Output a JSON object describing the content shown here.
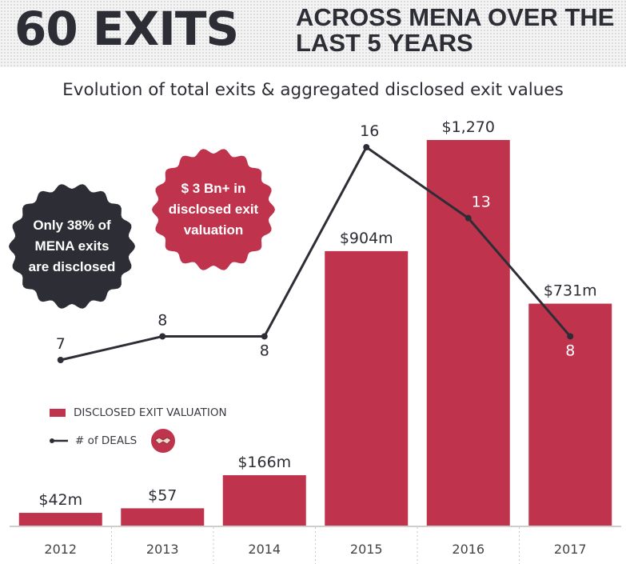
{
  "header": {
    "big_title": "60 EXITS",
    "sub_title_line1": "ACROSS MENA OVER THE",
    "sub_title_line2": "LAST 5 YEARS"
  },
  "chart_title": "Evolution of total exits & aggregated disclosed exit values",
  "badges": {
    "disclosed_share": {
      "line1": "Only 38% of",
      "line2": "MENA exits",
      "line3": "are disclosed"
    },
    "total_value": {
      "line1": "$ 3 Bn+ in",
      "line2": "disclosed exit",
      "line3": "valuation"
    }
  },
  "legend": {
    "bar_label": "DISCLOSED EXIT VALUATION",
    "line_label": "# of DEALS",
    "icon": "handshake-icon"
  },
  "colors": {
    "bar": "#c0334d",
    "line": "#2d2d35",
    "text": "#2d2d35"
  },
  "chart_data": {
    "type": "bar",
    "title": "Evolution of total exits & aggregated disclosed exit values",
    "categories": [
      "2012",
      "2013",
      "2014",
      "2015",
      "2016",
      "2017"
    ],
    "series": [
      {
        "name": "DISCLOSED EXIT VALUATION",
        "type": "bar",
        "values": [
          42,
          57,
          166,
          904,
          1270,
          731
        ],
        "labels": [
          "$42m",
          "$57",
          "$166m",
          "$904m",
          "$1,270",
          "$731m"
        ]
      },
      {
        "name": "# of DEALS",
        "type": "line",
        "values": [
          7,
          8,
          8,
          16,
          13,
          8
        ],
        "labels": [
          "7",
          "8",
          "8",
          "16",
          "13",
          "8"
        ]
      }
    ],
    "xlabel": "",
    "ylabel": "",
    "grid": false,
    "legend_position": "left"
  }
}
